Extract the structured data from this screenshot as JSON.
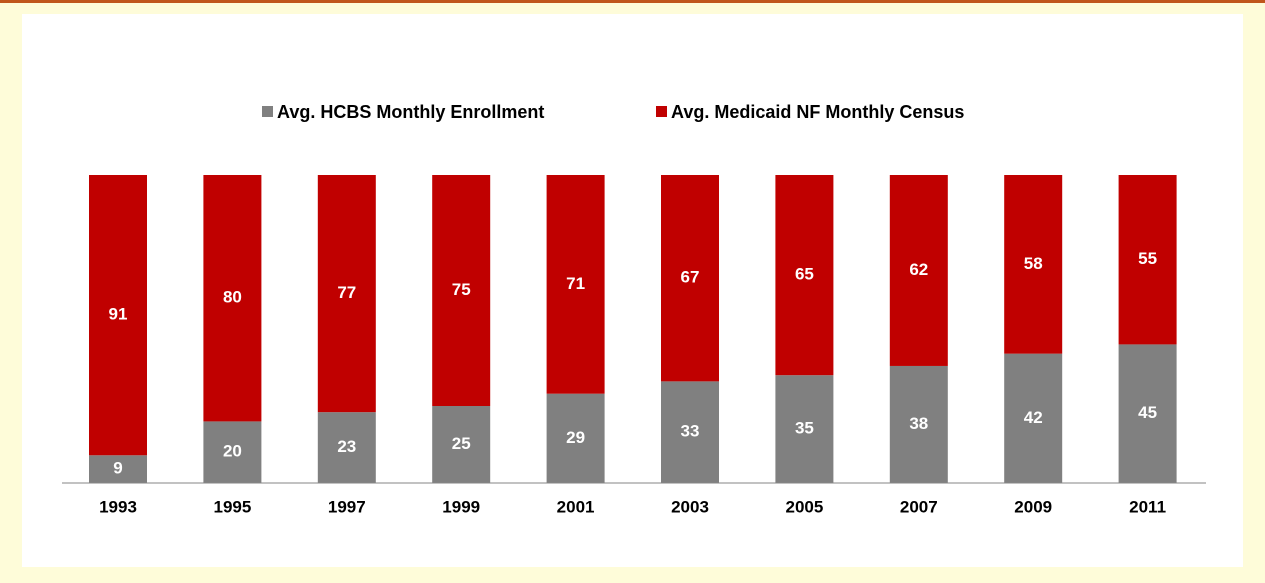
{
  "chart_data": {
    "type": "stacked_bar",
    "categories": [
      "1993",
      "1995",
      "1997",
      "1999",
      "2001",
      "2003",
      "2005",
      "2007",
      "2009",
      "2011"
    ],
    "series": [
      {
        "name": "Avg. HCBS Monthly Enrollment",
        "color": "#808080",
        "values": [
          9,
          20,
          23,
          25,
          29,
          33,
          35,
          38,
          42,
          45
        ]
      },
      {
        "name": "Avg. Medicaid NF Monthly Census",
        "color": "#c00000",
        "values": [
          91,
          80,
          77,
          75,
          71,
          67,
          65,
          62,
          58,
          55
        ]
      }
    ],
    "ylim": [
      0,
      100
    ],
    "legend": "top"
  }
}
